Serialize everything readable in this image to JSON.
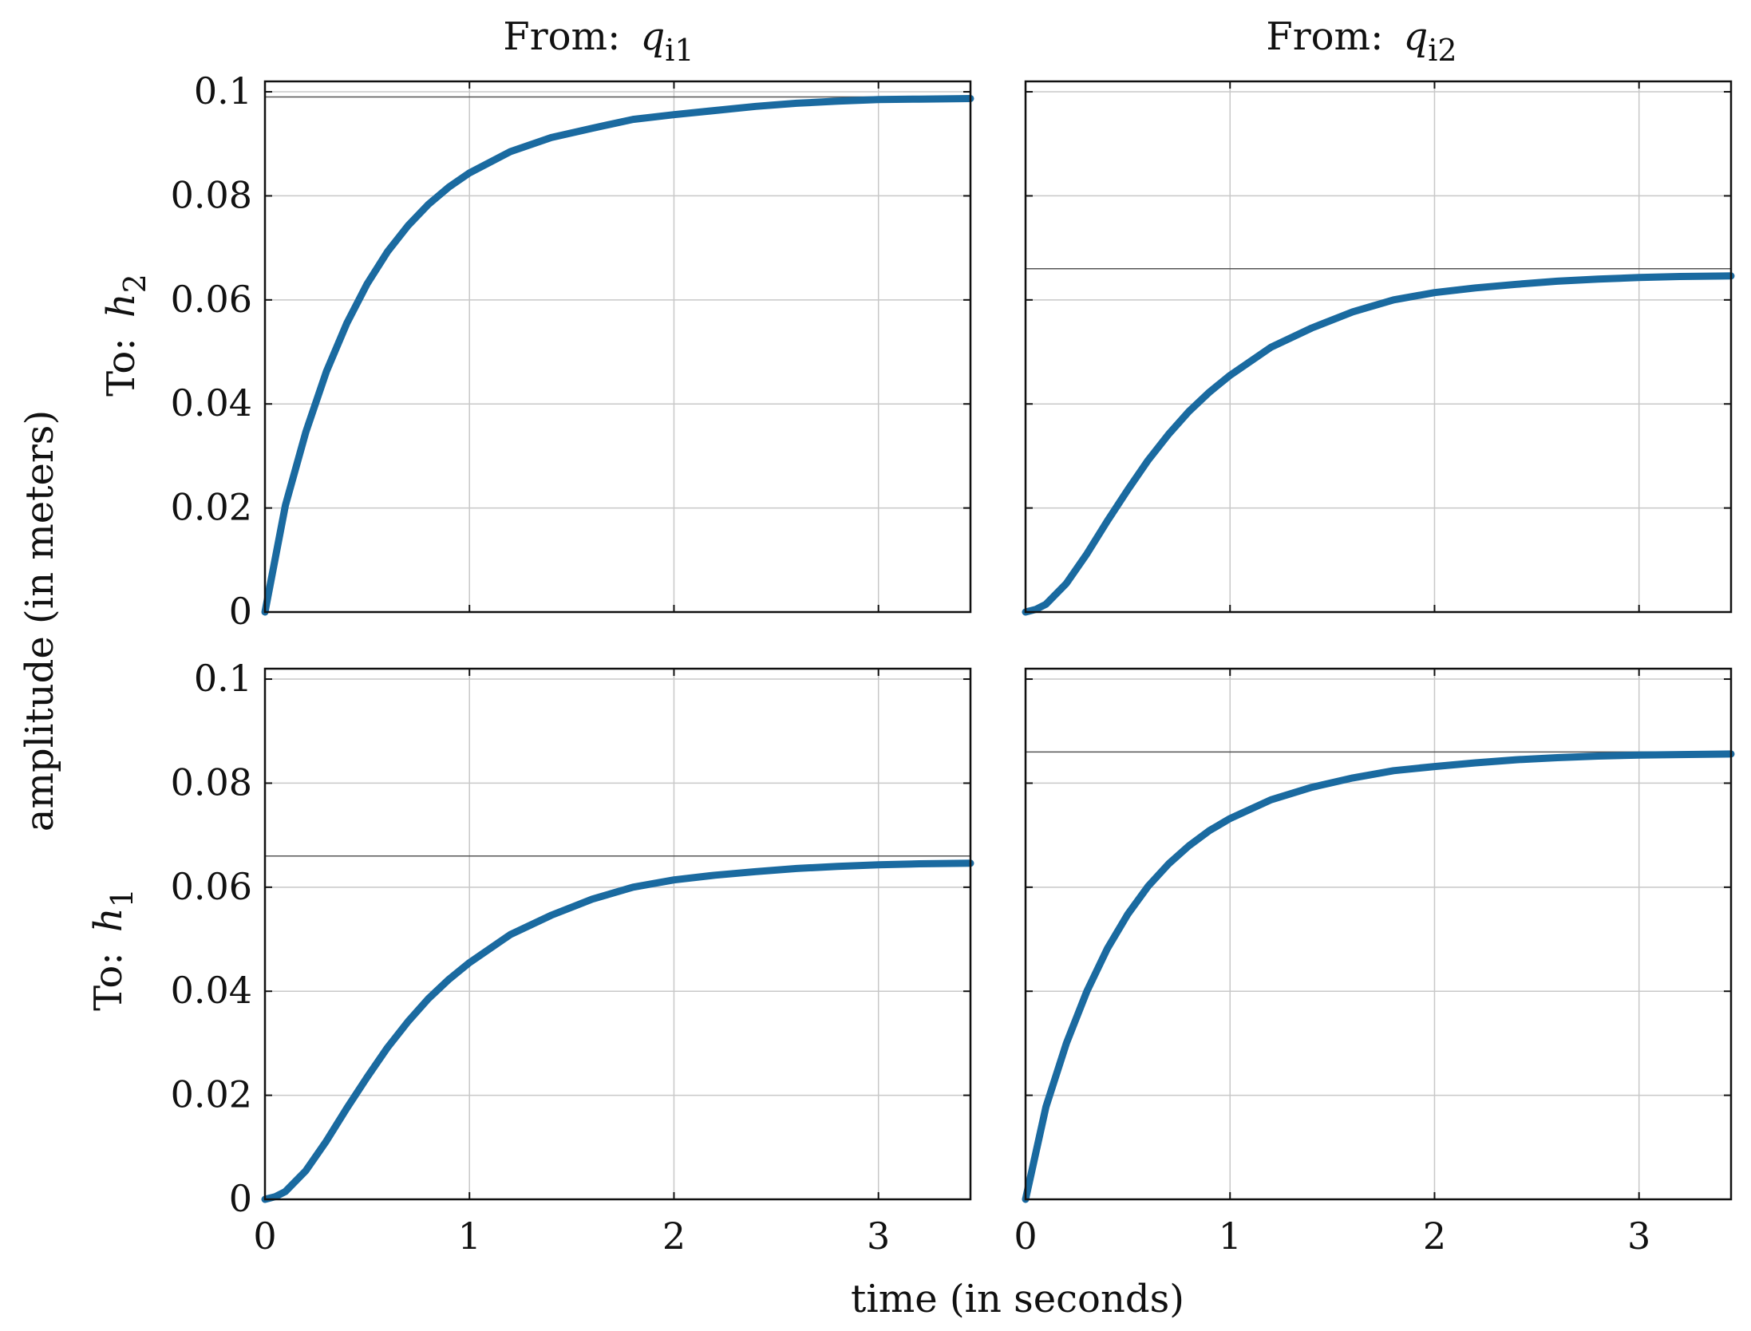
{
  "chart_data": {
    "type": "line",
    "layout": "2x2 grid of step-response subplots",
    "xlabel": "time (in seconds)",
    "ylabel": "amplitude (in meters)",
    "columns": [
      {
        "prefix": "From:",
        "var": "q",
        "sub": "i1"
      },
      {
        "prefix": "From:",
        "var": "q",
        "sub": "i2"
      }
    ],
    "rows": [
      {
        "prefix": "To:",
        "var": "h",
        "sub": "2"
      },
      {
        "prefix": "To:",
        "var": "h",
        "sub": "1"
      }
    ],
    "xlim": [
      0,
      3.45
    ],
    "ylim": [
      0,
      0.102
    ],
    "xticks": [
      0,
      1,
      2,
      3
    ],
    "xtick_labels": [
      "0",
      "1",
      "2",
      "3"
    ],
    "yticks": [
      0,
      0.02,
      0.04,
      0.06,
      0.08,
      0.1
    ],
    "ytick_labels": [
      "0",
      "0.02",
      "0.04",
      "0.06",
      "0.08",
      "0.1"
    ],
    "grid": true,
    "line_color": "#1a6aa0",
    "steady_color": "#555555",
    "subplots": [
      {
        "row": 0,
        "col": 0,
        "steady_state": 0.099,
        "x": [
          0,
          0.1,
          0.2,
          0.3,
          0.4,
          0.5,
          0.6,
          0.7,
          0.8,
          0.9,
          1.0,
          1.2,
          1.4,
          1.6,
          1.8,
          2.0,
          2.2,
          2.4,
          2.6,
          2.8,
          3.0,
          3.2,
          3.45
        ],
        "y": [
          0,
          0.0205,
          0.0346,
          0.0462,
          0.0555,
          0.0631,
          0.0693,
          0.0743,
          0.0784,
          0.0817,
          0.0844,
          0.0885,
          0.0912,
          0.093,
          0.0947,
          0.0956,
          0.0964,
          0.0972,
          0.0978,
          0.0982,
          0.0985,
          0.0986,
          0.0987
        ]
      },
      {
        "row": 0,
        "col": 1,
        "steady_state": 0.066,
        "x": [
          0,
          0.05,
          0.1,
          0.2,
          0.3,
          0.4,
          0.5,
          0.6,
          0.7,
          0.8,
          0.9,
          1.0,
          1.2,
          1.4,
          1.6,
          1.8,
          2.0,
          2.2,
          2.4,
          2.6,
          2.8,
          3.0,
          3.2,
          3.45
        ],
        "y": [
          0,
          0.0005,
          0.0015,
          0.0055,
          0.0112,
          0.0175,
          0.0235,
          0.0292,
          0.0342,
          0.0386,
          0.0423,
          0.0455,
          0.0509,
          0.0546,
          0.0577,
          0.06,
          0.0614,
          0.0623,
          0.063,
          0.0636,
          0.064,
          0.0643,
          0.0645,
          0.0646
        ]
      },
      {
        "row": 1,
        "col": 0,
        "steady_state": 0.066,
        "x": [
          0,
          0.05,
          0.1,
          0.2,
          0.3,
          0.4,
          0.5,
          0.6,
          0.7,
          0.8,
          0.9,
          1.0,
          1.2,
          1.4,
          1.6,
          1.8,
          2.0,
          2.2,
          2.4,
          2.6,
          2.8,
          3.0,
          3.2,
          3.45
        ],
        "y": [
          0,
          0.0005,
          0.0015,
          0.0055,
          0.0112,
          0.0175,
          0.0235,
          0.0292,
          0.0342,
          0.0386,
          0.0423,
          0.0455,
          0.0509,
          0.0546,
          0.0577,
          0.06,
          0.0614,
          0.0623,
          0.063,
          0.0636,
          0.064,
          0.0643,
          0.0645,
          0.0646
        ]
      },
      {
        "row": 1,
        "col": 1,
        "steady_state": 0.086,
        "x": [
          0,
          0.1,
          0.2,
          0.3,
          0.4,
          0.5,
          0.6,
          0.7,
          0.8,
          0.9,
          1.0,
          1.2,
          1.4,
          1.6,
          1.8,
          2.0,
          2.2,
          2.4,
          2.6,
          2.8,
          3.0,
          3.2,
          3.45
        ],
        "y": [
          0,
          0.0178,
          0.03,
          0.04,
          0.0482,
          0.0548,
          0.0602,
          0.0645,
          0.068,
          0.0709,
          0.0732,
          0.0768,
          0.0792,
          0.081,
          0.0824,
          0.0832,
          0.0839,
          0.0845,
          0.0849,
          0.0852,
          0.0854,
          0.0855,
          0.0856
        ]
      }
    ]
  }
}
